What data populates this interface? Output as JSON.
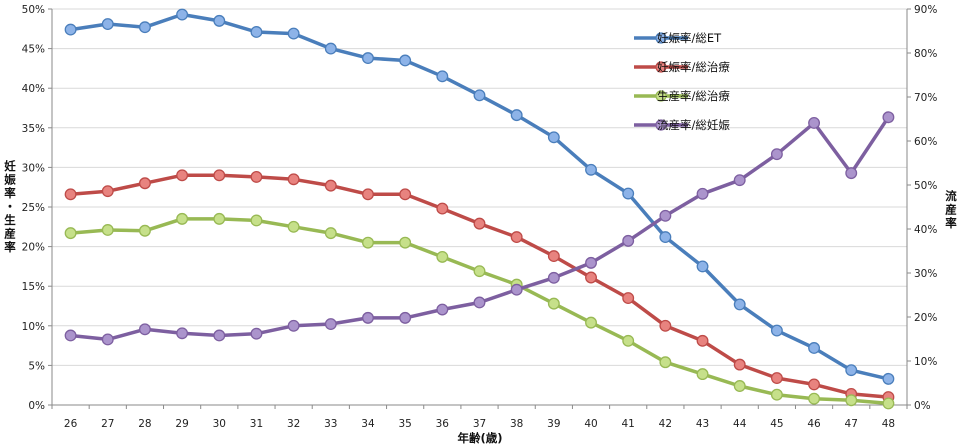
{
  "chart_data": {
    "type": "line",
    "title": "",
    "xlabel": "年齢(歳)",
    "ylabel_left": "妊娠率・生産率",
    "ylabel_right": "流産率",
    "x": [
      26,
      27,
      28,
      29,
      30,
      31,
      32,
      33,
      34,
      35,
      36,
      37,
      38,
      39,
      40,
      41,
      42,
      43,
      44,
      45,
      46,
      47,
      48
    ],
    "ylim_left": [
      0,
      50
    ],
    "ylim_right": [
      0,
      90
    ],
    "yticks_left": [
      "0%",
      "5%",
      "10%",
      "15%",
      "20%",
      "25%",
      "30%",
      "35%",
      "40%",
      "45%",
      "50%"
    ],
    "yticks_right": [
      "0%",
      "10%",
      "20%",
      "30%",
      "40%",
      "50%",
      "60%",
      "70%",
      "80%",
      "90%"
    ],
    "grid": true,
    "legend_position": "top-right",
    "series": [
      {
        "name": "妊娠率/総ET",
        "axis": "left",
        "color": "#4a7ebb",
        "marker": "#8db3e8",
        "values": [
          47.4,
          48.1,
          47.7,
          49.3,
          48.5,
          47.1,
          46.9,
          45.0,
          43.8,
          43.5,
          41.5,
          39.1,
          36.6,
          33.8,
          29.7,
          26.7,
          21.2,
          17.5,
          12.7,
          9.4,
          7.2,
          4.4,
          3.3
        ]
      },
      {
        "name": "妊娠率/総治療",
        "axis": "left",
        "color": "#be4b48",
        "marker": "#e8837f",
        "values": [
          26.6,
          27.0,
          28.0,
          29.0,
          29.0,
          28.8,
          28.5,
          27.7,
          26.6,
          26.6,
          24.8,
          22.9,
          21.2,
          18.8,
          16.1,
          13.5,
          10.0,
          8.1,
          5.1,
          3.4,
          2.6,
          1.4,
          1.0
        ]
      },
      {
        "name": "生産率/総治療",
        "axis": "left",
        "color": "#98b954",
        "marker": "#c6e08a",
        "values": [
          21.7,
          22.1,
          22.0,
          23.5,
          23.5,
          23.3,
          22.5,
          21.7,
          20.5,
          20.5,
          18.7,
          16.9,
          15.2,
          12.8,
          10.4,
          8.1,
          5.4,
          3.9,
          2.4,
          1.3,
          0.8,
          0.6,
          0.2
        ]
      },
      {
        "name": "流産率/総妊娠",
        "axis": "right",
        "color": "#7d5fa0",
        "marker": "#ab94cc",
        "values": [
          15.8,
          14.9,
          17.2,
          16.3,
          15.8,
          16.2,
          18.0,
          18.4,
          19.8,
          19.8,
          21.7,
          23.3,
          26.2,
          28.9,
          32.3,
          37.3,
          43.0,
          48.0,
          51.1,
          57.0,
          64.1,
          52.7,
          65.4
        ]
      }
    ]
  }
}
